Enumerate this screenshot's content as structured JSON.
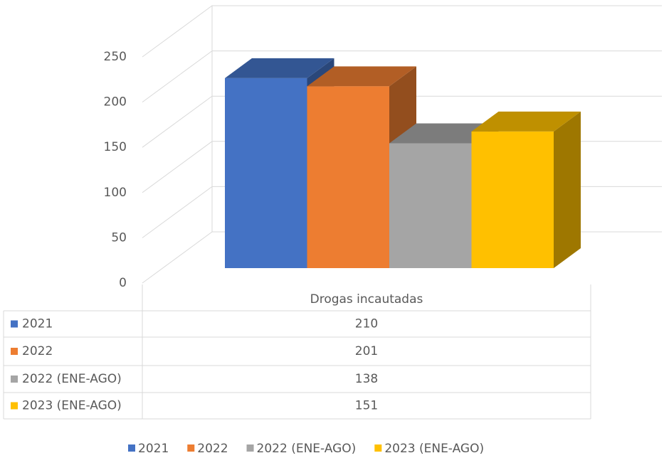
{
  "chart_data": {
    "type": "bar3d",
    "categories": [
      "Drogas incautadas"
    ],
    "series": [
      {
        "name": "2021",
        "color": "#4472c4",
        "values": [
          210
        ]
      },
      {
        "name": "2022",
        "color": "#ed7d31",
        "values": [
          201
        ]
      },
      {
        "name": "2022 (ENE-AGO)",
        "color": "#a5a5a5",
        "values": [
          138
        ]
      },
      {
        "name": "2023 (ENE-AGO)",
        "color": "#ffc000",
        "values": [
          151
        ]
      }
    ],
    "ylim": [
      0,
      250
    ],
    "yticks": [
      0,
      50,
      100,
      150,
      200,
      250
    ],
    "grid": true,
    "legend": "bottom"
  }
}
